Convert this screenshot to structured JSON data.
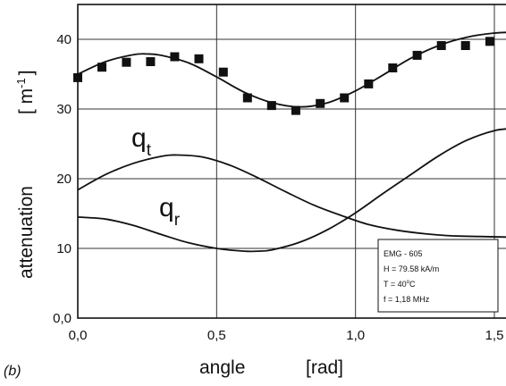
{
  "chart_data": {
    "type": "scatter",
    "panel_label": "(b)",
    "xlabel": "angle",
    "xunit": "[rad]",
    "ylabel": "attenuation",
    "yunit": "[ m",
    "yunit_sup": "-1",
    "yunit_close": "]",
    "xlim": [
      0.0,
      1.57
    ],
    "ylim": [
      0,
      45
    ],
    "xticks": [
      {
        "value": 0.0,
        "label": "0,0"
      },
      {
        "value": 0.5,
        "label": "0,5"
      },
      {
        "value": 1.0,
        "label": "1,0"
      },
      {
        "value": 1.5,
        "label": "1,5"
      }
    ],
    "yticks": [
      {
        "value": 0,
        "label": "0,0"
      },
      {
        "value": 10,
        "label": "10"
      },
      {
        "value": 20,
        "label": "20"
      },
      {
        "value": 30,
        "label": "30"
      },
      {
        "value": 40,
        "label": "40"
      }
    ],
    "grid": true,
    "series": [
      {
        "kind": "markers",
        "x": [
          0.0,
          0.087,
          0.175,
          0.262,
          0.349,
          0.436,
          0.524,
          0.611,
          0.698,
          0.785,
          0.873,
          0.96,
          1.047,
          1.134,
          1.222,
          1.309,
          1.396,
          1.484,
          1.571
        ],
        "y": [
          34.5,
          36.0,
          36.7,
          36.8,
          37.5,
          37.2,
          35.3,
          31.6,
          30.5,
          29.8,
          30.8,
          31.6,
          33.6,
          35.9,
          37.7,
          39.1,
          39.1,
          39.7,
          39.8
        ]
      },
      {
        "kind": "line",
        "x": [
          0.0,
          0.1,
          0.2,
          0.25,
          0.3,
          0.4,
          0.5,
          0.6,
          0.7,
          0.8,
          0.9,
          1.0,
          1.1,
          1.2,
          1.3,
          1.4,
          1.5,
          1.57
        ],
        "y": [
          35.0,
          36.8,
          37.8,
          37.9,
          37.7,
          36.6,
          34.6,
          32.4,
          30.9,
          30.3,
          30.9,
          32.6,
          34.9,
          37.3,
          39.1,
          40.3,
          40.9,
          41.0
        ]
      },
      {
        "kind": "line",
        "name": "q",
        "name_sub": "t",
        "x": [
          0.0,
          0.1,
          0.2,
          0.3,
          0.36,
          0.45,
          0.55,
          0.65,
          0.75,
          0.85,
          0.95,
          1.05,
          1.15,
          1.25,
          1.35,
          1.45,
          1.57
        ],
        "y": [
          18.4,
          20.6,
          22.2,
          23.2,
          23.4,
          23.1,
          21.9,
          20.1,
          18.1,
          16.2,
          14.7,
          13.4,
          12.6,
          12.1,
          11.8,
          11.7,
          11.6
        ]
      },
      {
        "kind": "line",
        "name": "q",
        "name_sub": "r",
        "x": [
          0.0,
          0.1,
          0.2,
          0.3,
          0.4,
          0.5,
          0.6,
          0.65,
          0.7,
          0.8,
          0.9,
          1.0,
          1.1,
          1.2,
          1.3,
          1.4,
          1.5,
          1.57
        ],
        "y": [
          14.5,
          14.2,
          13.3,
          12.0,
          10.8,
          10.0,
          9.6,
          9.6,
          9.8,
          10.9,
          12.7,
          15.1,
          17.9,
          20.6,
          23.3,
          25.5,
          26.9,
          27.2
        ]
      }
    ],
    "annotation": {
      "lines": [
        "EMG - 605",
        "H = 79.58 kA/m",
        "T = 40",
        "f = 1,18 MHz"
      ],
      "temp_sup": "o",
      "temp_unit": "C"
    }
  }
}
